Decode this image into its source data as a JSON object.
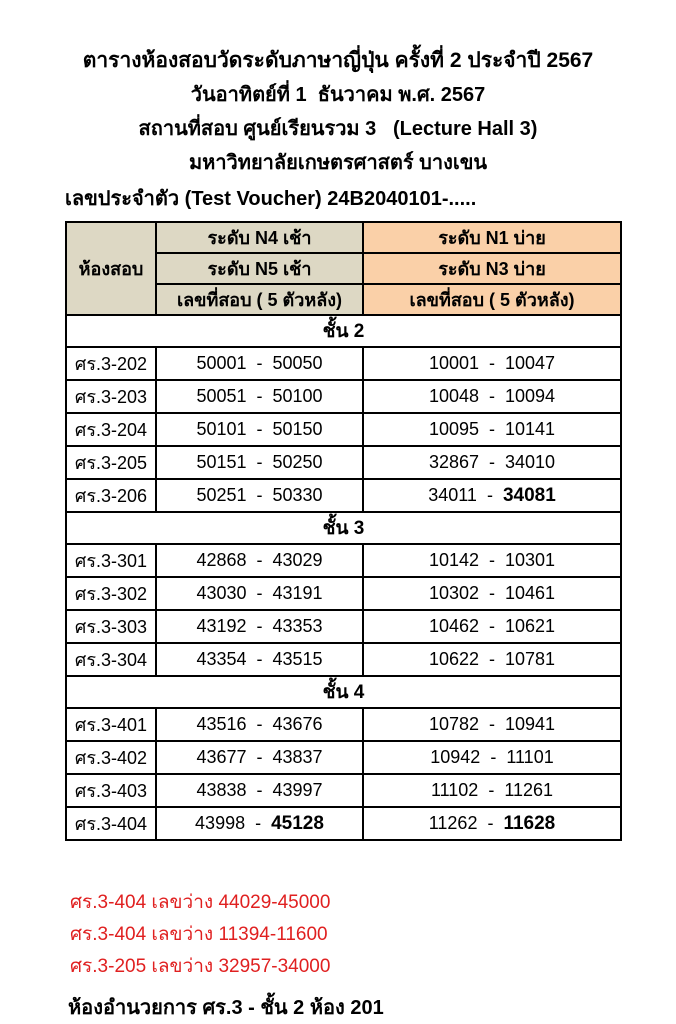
{
  "page": {
    "title_lines": [
      "ตารางห้องสอบวัดระดับภาษาญี่ปุ่น ครั้งที่ 2 ประจำปี 2567",
      "วันอาทิตย์ที่ 1  ธันวาคม พ.ศ. 2567",
      "สถานที่สอบ ศูนย์เรียนรวม 3   (Lecture Hall 3)",
      "มหาวิทยาลัยเกษตรศาสตร์ บางเขน"
    ],
    "voucher_line": "เลขประจำตัว (Test Voucher) 24B2040101-....."
  },
  "table": {
    "room_header": "ห้องสอบ",
    "morning_headers": [
      "ระดับ N4 เช้า",
      "ระดับ N5 เช้า",
      "เลขที่สอบ ( 5 ตัวหลัง)"
    ],
    "afternoon_headers": [
      "ระดับ N1 บ่าย",
      "ระดับ N3 บ่าย",
      "เลขที่สอบ ( 5 ตัวหลัง)"
    ],
    "colors": {
      "morning_header_bg": "#ddd8c4",
      "afternoon_header_bg": "#fad0a8",
      "note_red": "#e02020"
    },
    "sections": [
      {
        "label": "ชั้น 2",
        "rows": [
          {
            "room": "ศร.3-202",
            "m": [
              "50001",
              "50050"
            ],
            "a": [
              "10001",
              "10047"
            ],
            "mb": false,
            "ab": false
          },
          {
            "room": "ศร.3-203",
            "m": [
              "50051",
              "50100"
            ],
            "a": [
              "10048",
              "10094"
            ],
            "mb": false,
            "ab": false
          },
          {
            "room": "ศร.3-204",
            "m": [
              "50101",
              "50150"
            ],
            "a": [
              "10095",
              "10141"
            ],
            "mb": false,
            "ab": false
          },
          {
            "room": "ศร.3-205",
            "m": [
              "50151",
              "50250"
            ],
            "a": [
              "32867",
              "34010"
            ],
            "mb": false,
            "ab": false
          },
          {
            "room": "ศร.3-206",
            "m": [
              "50251",
              "50330"
            ],
            "a": [
              "34011",
              "34081"
            ],
            "mb": false,
            "ab": true
          }
        ]
      },
      {
        "label": "ชั้น 3",
        "rows": [
          {
            "room": "ศร.3-301",
            "m": [
              "42868",
              "43029"
            ],
            "a": [
              "10142",
              "10301"
            ],
            "mb": false,
            "ab": false
          },
          {
            "room": "ศร.3-302",
            "m": [
              "43030",
              "43191"
            ],
            "a": [
              "10302",
              "10461"
            ],
            "mb": false,
            "ab": false
          },
          {
            "room": "ศร.3-303",
            "m": [
              "43192",
              "43353"
            ],
            "a": [
              "10462",
              "10621"
            ],
            "mb": false,
            "ab": false
          },
          {
            "room": "ศร.3-304",
            "m": [
              "43354",
              "43515"
            ],
            "a": [
              "10622",
              "10781"
            ],
            "mb": false,
            "ab": false
          }
        ]
      },
      {
        "label": "ชั้น 4",
        "rows": [
          {
            "room": "ศร.3-401",
            "m": [
              "43516",
              "43676"
            ],
            "a": [
              "10782",
              "10941"
            ],
            "mb": false,
            "ab": false
          },
          {
            "room": "ศร.3-402",
            "m": [
              "43677",
              "43837"
            ],
            "a": [
              "10942",
              "11101"
            ],
            "mb": false,
            "ab": false
          },
          {
            "room": "ศร.3-403",
            "m": [
              "43838",
              "43997"
            ],
            "a": [
              "11102",
              "11261"
            ],
            "mb": false,
            "ab": false
          },
          {
            "room": "ศร.3-404",
            "m": [
              "43998",
              "45128"
            ],
            "a": [
              "11262",
              "11628"
            ],
            "mb": true,
            "ab": true
          }
        ]
      }
    ]
  },
  "notes": [
    "ศร.3-404 เลขว่าง 44029-45000",
    "ศร.3-404 เลขว่าง 11394-11600",
    "ศร.3-205 เลขว่าง 32957-34000"
  ],
  "footer_line": "ห้องอำนวยการ ศร.3 - ชั้น 2 ห้อง 201"
}
